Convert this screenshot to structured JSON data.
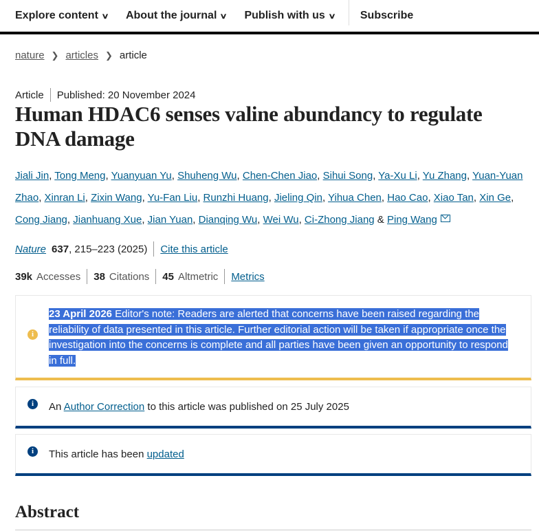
{
  "nav": {
    "items": [
      {
        "label": "Explore content",
        "chevron": true
      },
      {
        "label": "About the journal",
        "chevron": true
      },
      {
        "label": "Publish with us",
        "chevron": true
      }
    ],
    "subscribe": "Subscribe"
  },
  "breadcrumb": {
    "items": [
      "nature",
      "articles"
    ],
    "current": "article"
  },
  "article": {
    "type": "Article",
    "published": "Published: 20 November 2024",
    "title": "Human HDAC6 senses valine abundancy to regulate DNA damage",
    "authors": [
      "Jiali Jin",
      "Tong Meng",
      "Yuanyuan Yu",
      "Shuheng Wu",
      "Chen-Chen Jiao",
      "Sihui Song",
      "Ya-Xu Li",
      "Yu Zhang",
      "Yuan-Yuan Zhao",
      "Xinran Li",
      "Zixin Wang",
      "Yu-Fan Liu",
      "Runzhi Huang",
      "Jieling Qin",
      "Yihua Chen",
      "Hao Cao",
      "Xiao Tan",
      "Xin Ge",
      "Cong Jiang",
      "Jianhuang Xue",
      "Jian Yuan",
      "Dianqing Wu",
      "Wei Wu",
      "Ci-Zhong Jiang",
      "Ping Wang"
    ],
    "authors_and": "&",
    "journal": "Nature",
    "volume": "637",
    "pages": ", 215–223 (2025)",
    "cite": "Cite this article"
  },
  "metrics": {
    "accesses": "39k",
    "accesses_label": "Accesses",
    "citations": "38",
    "citations_label": "Citations",
    "altmetric": "45",
    "altmetric_label": "Altmetric",
    "link": "Metrics"
  },
  "notices": {
    "editor": {
      "date": "23 April 2026",
      "text": " Editor's note: Readers are alerted that concerns have been raised regarding the reliability of data presented in this article. Further editorial action will be taken if appropriate once the investigation into the concerns is complete and all parties have been given an opportunity to respond in full.",
      "color": "#eebd4f"
    },
    "correction": {
      "pre": "An ",
      "link": "Author Correction",
      "post": " to this article was published on 25 July 2025",
      "color": "#01407f"
    },
    "updated": {
      "pre": "This article has been ",
      "link": "updated"
    }
  },
  "abstract_heading": "Abstract"
}
